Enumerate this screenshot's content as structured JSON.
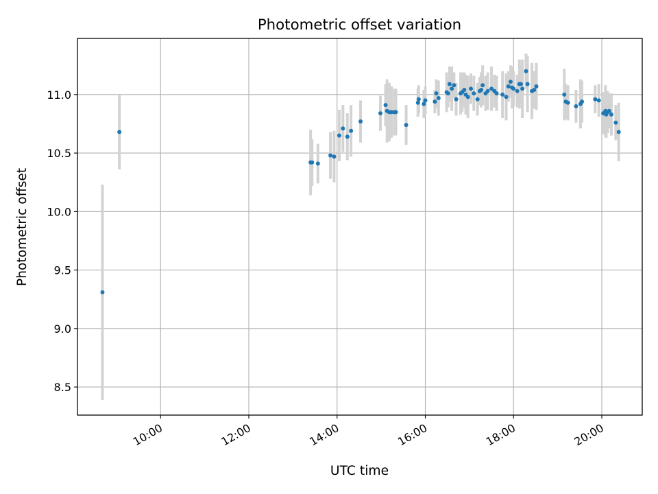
{
  "chart_data": {
    "type": "scatter",
    "title": "Photometric offset variation",
    "xlabel": "UTC time",
    "ylabel": "Photometric offset",
    "x_tick_labels": [
      "10:00",
      "12:00",
      "14:00",
      "16:00",
      "18:00",
      "20:00"
    ],
    "x_tick_values": [
      "10:00",
      "12:00",
      "14:00",
      "16:00",
      "18:00",
      "20:00"
    ],
    "xlim": [
      "08:07",
      "20:55"
    ],
    "y_tick_labels": [
      "8.5",
      "9.0",
      "9.5",
      "10.0",
      "10.5",
      "11.0"
    ],
    "y_tick_values": [
      8.5,
      9.0,
      9.5,
      10.0,
      10.5,
      11.0
    ],
    "ylim": [
      8.26,
      11.48
    ],
    "grid": true,
    "point_color": "#1f77b4",
    "errorbar_color": "#d3d3d3",
    "series": [
      {
        "x": [
          "08:41",
          "09:04",
          "13:24",
          "13:26",
          "13:34",
          "13:51",
          "13:56",
          "14:03",
          "14:08",
          "14:14",
          "14:19",
          "14:32",
          "14:59",
          "15:06",
          "15:08",
          "15:11",
          "15:14",
          "15:18",
          "15:20",
          "15:34",
          "15:50",
          "15:51",
          "15:58",
          "16:00",
          "16:13",
          "16:15",
          "16:18",
          "16:29",
          "16:31",
          "16:33",
          "16:36",
          "16:39",
          "16:42",
          "16:48",
          "16:50",
          "16:53",
          "16:55",
          "16:58",
          "17:02",
          "17:06",
          "17:11",
          "17:14",
          "17:16",
          "17:18",
          "17:22",
          "17:25",
          "17:30",
          "17:34",
          "17:37",
          "17:45",
          "17:50",
          "17:53",
          "17:56",
          "17:58",
          "18:00",
          "18:05",
          "18:08",
          "18:10",
          "18:12",
          "18:17",
          "18:19",
          "18:25",
          "18:28",
          "18:31",
          "19:09",
          "19:11",
          "19:14",
          "19:25",
          "19:31",
          "19:33",
          "19:51",
          "19:56",
          "20:02",
          "20:05",
          "20:06",
          "20:08",
          "20:10",
          "20:13",
          "20:19",
          "20:23"
        ],
        "y": [
          9.31,
          10.68,
          10.42,
          10.42,
          10.41,
          10.48,
          10.47,
          10.65,
          10.71,
          10.64,
          10.69,
          10.77,
          10.84,
          10.91,
          10.86,
          10.85,
          10.85,
          10.85,
          10.85,
          10.74,
          10.93,
          10.96,
          10.92,
          10.95,
          10.94,
          11.01,
          10.97,
          11.02,
          11.01,
          11.09,
          11.05,
          11.08,
          10.96,
          11.01,
          11.02,
          11.04,
          11.0,
          10.98,
          11.05,
          11.01,
          10.96,
          11.03,
          11.04,
          11.08,
          11.01,
          11.03,
          11.05,
          11.03,
          11.01,
          11.0,
          10.98,
          11.07,
          11.11,
          11.06,
          11.05,
          11.03,
          11.09,
          11.09,
          11.05,
          11.2,
          11.09,
          11.03,
          11.04,
          11.07,
          11.0,
          10.94,
          10.93,
          10.9,
          10.92,
          10.94,
          10.96,
          10.95,
          10.84,
          10.86,
          10.83,
          10.85,
          10.86,
          10.83,
          10.76,
          10.68
        ],
        "err": [
          0.92,
          0.32,
          0.28,
          0.2,
          0.17,
          0.2,
          0.22,
          0.22,
          0.2,
          0.2,
          0.22,
          0.18,
          0.15,
          0.18,
          0.27,
          0.25,
          0.22,
          0.2,
          0.2,
          0.17,
          0.12,
          0.12,
          0.12,
          0.12,
          0.1,
          0.12,
          0.15,
          0.17,
          0.12,
          0.15,
          0.19,
          0.11,
          0.14,
          0.18,
          0.17,
          0.15,
          0.17,
          0.18,
          0.13,
          0.15,
          0.14,
          0.12,
          0.15,
          0.17,
          0.15,
          0.16,
          0.19,
          0.14,
          0.15,
          0.2,
          0.2,
          0.13,
          0.14,
          0.18,
          0.15,
          0.14,
          0.21,
          0.16,
          0.25,
          0.15,
          0.24,
          0.24,
          0.16,
          0.2,
          0.22,
          0.15,
          0.15,
          0.14,
          0.21,
          0.18,
          0.12,
          0.14,
          0.18,
          0.22,
          0.2,
          0.18,
          0.15,
          0.18,
          0.15,
          0.25
        ]
      }
    ]
  }
}
